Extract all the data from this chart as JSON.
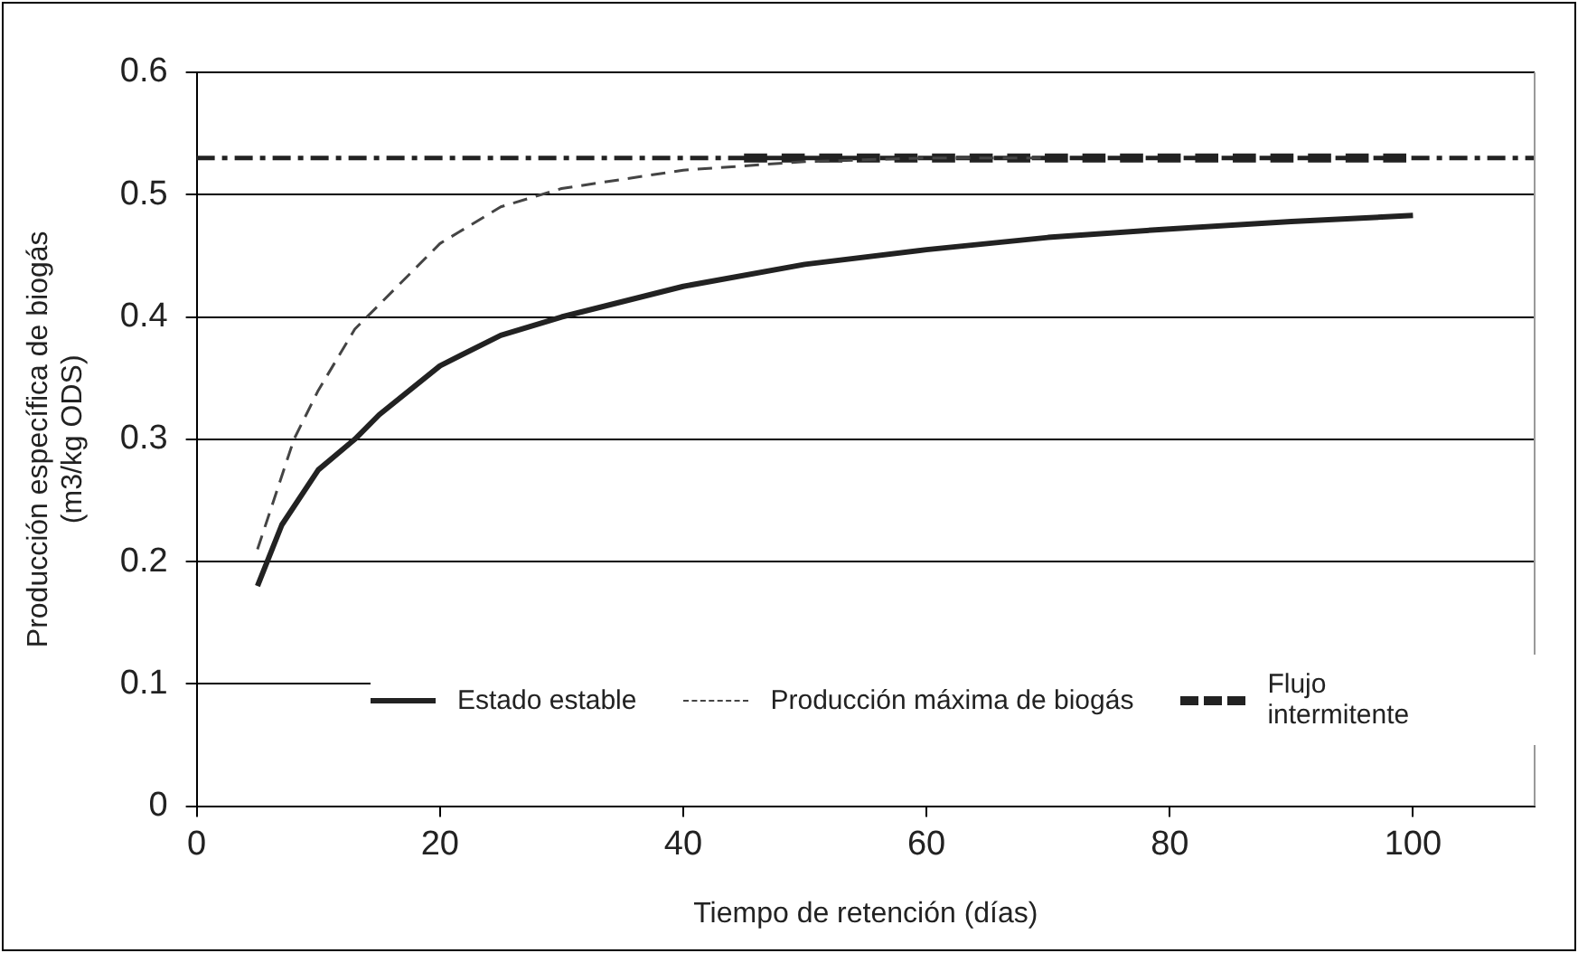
{
  "chart_data": {
    "type": "line",
    "xlabel": "Tiempo de retención (días)",
    "ylabel": "Producción específica de biogás\n(m3/kg ODS)",
    "xlim": [
      0,
      110
    ],
    "xticks": [
      0,
      20,
      40,
      60,
      80,
      100
    ],
    "ylim": [
      0,
      0.6
    ],
    "yticks": [
      0,
      0.1,
      0.2,
      0.3,
      0.4,
      0.5,
      0.6
    ],
    "grid": "y",
    "legend": "bottom right",
    "marker": "none",
    "series": [
      {
        "name": "Estado estable",
        "color": "#222222",
        "line_style": "solid",
        "x": [
          5,
          7,
          10,
          13,
          15,
          20,
          25,
          30,
          40,
          50,
          60,
          70,
          80,
          90,
          100
        ],
        "values": [
          0.18,
          0.23,
          0.275,
          0.3,
          0.32,
          0.36,
          0.385,
          0.4,
          0.425,
          0.443,
          0.455,
          0.465,
          0.472,
          0.478,
          0.483
        ]
      },
      {
        "name": "Producción máxima de biogás",
        "color": "#444444",
        "line_style": "dashed",
        "x": [
          5,
          8,
          10,
          13,
          15,
          20,
          25,
          30,
          40,
          50,
          60,
          70
        ],
        "values": [
          0.21,
          0.3,
          0.34,
          0.39,
          0.41,
          0.46,
          0.49,
          0.505,
          0.52,
          0.527,
          0.53,
          0.53
        ]
      },
      {
        "name": "Flujo intermitente",
        "color": "#222222",
        "line_style": "dashed",
        "x": [
          45,
          100
        ],
        "values": [
          0.53,
          0.53
        ]
      }
    ],
    "ref_lines": [
      {
        "axis": "y",
        "value": 0.53,
        "color": "#222222",
        "line_style": "dashed"
      }
    ]
  }
}
